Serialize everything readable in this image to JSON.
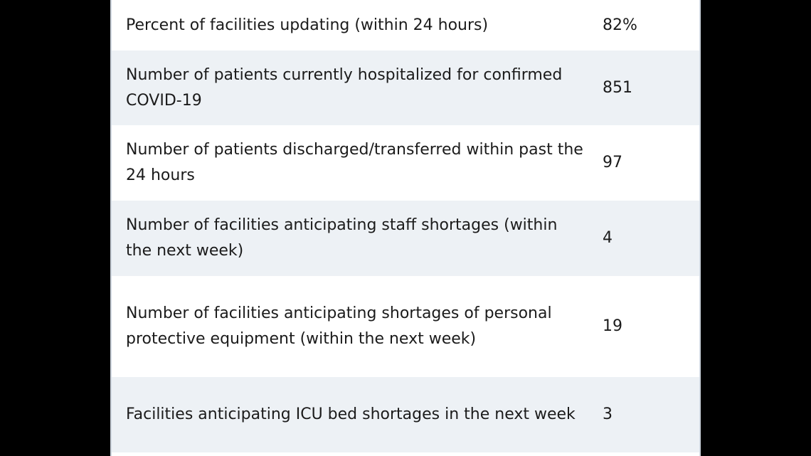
{
  "table": {
    "rows": [
      {
        "label": "Percent of facilities updating (within 24 hours)",
        "value": "82%"
      },
      {
        "label": "Number of patients currently hospitalized for confirmed COVID-19",
        "value": "851"
      },
      {
        "label": "Number of patients discharged/transferred within past the 24 hours",
        "value": "97"
      },
      {
        "label": "Number of facilities anticipating staff shortages (within the next week)",
        "value": "4"
      },
      {
        "label": "Number of facilities anticipating shortages of personal protective equipment (within the next week)",
        "value": "19"
      },
      {
        "label": "Facilities anticipating ICU bed shortages in the next week",
        "value": "3"
      }
    ]
  },
  "colors": {
    "background": "#000000",
    "row_alt": "#edf1f5",
    "row_base": "#ffffff",
    "text": "#1b1b1b"
  }
}
